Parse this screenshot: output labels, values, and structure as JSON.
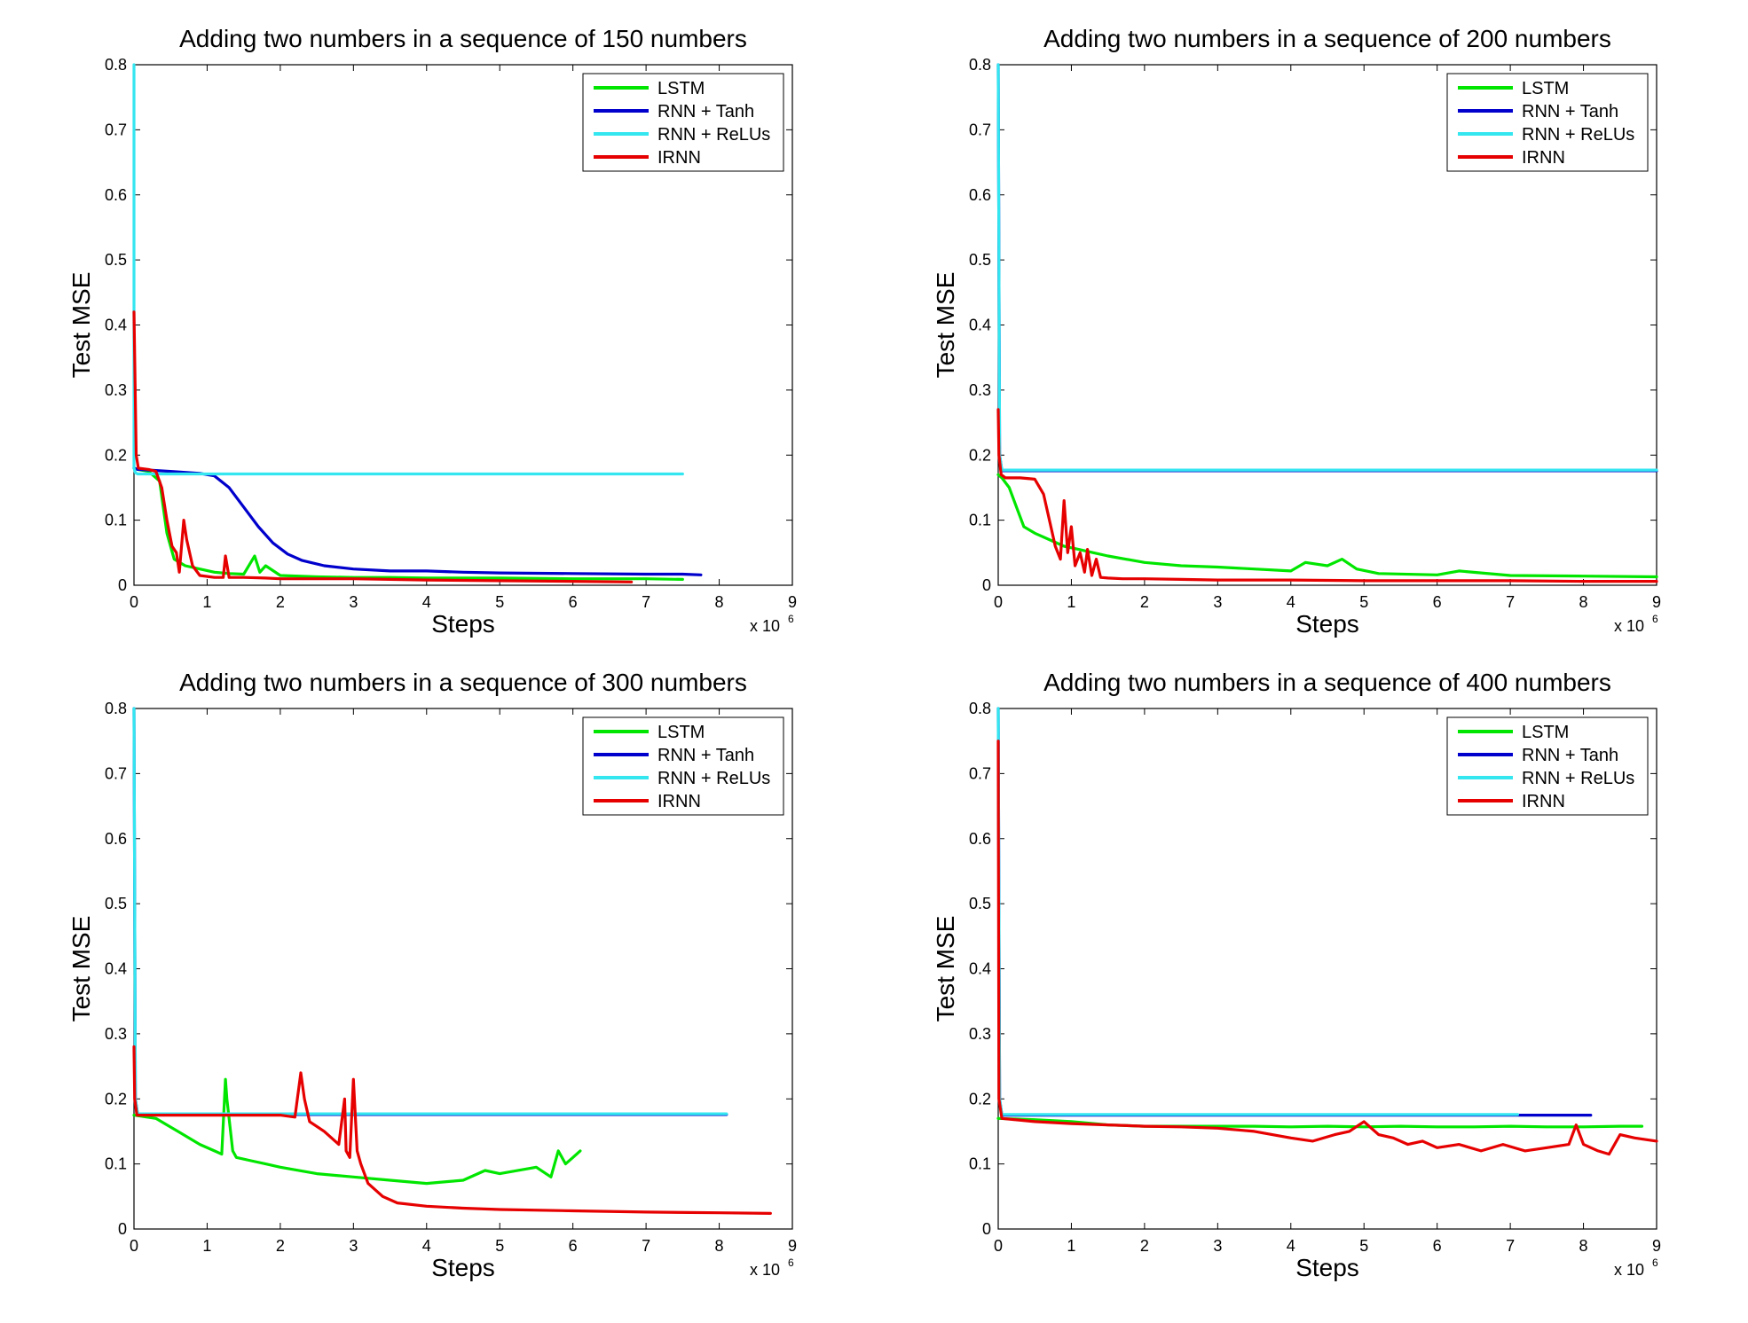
{
  "chart_data": [
    {
      "type": "line",
      "title": "Adding two numbers in a sequence of 150 numbers",
      "xlabel": "Steps",
      "ylabel": "Test MSE",
      "x_multiplier": "x 10",
      "x_multiplier_exp": "6",
      "xlim": [
        0,
        9
      ],
      "ylim": [
        0,
        0.8
      ],
      "x_ticks": [
        "0",
        "1",
        "2",
        "3",
        "4",
        "5",
        "6",
        "7",
        "8",
        "9"
      ],
      "y_ticks": [
        "0",
        "0.1",
        "0.2",
        "0.3",
        "0.4",
        "0.5",
        "0.6",
        "0.7",
        "0.8"
      ],
      "legend_position": "top-right",
      "series": [
        {
          "name": "LSTM",
          "color": "#00e600",
          "x": [
            0,
            0.05,
            0.2,
            0.35,
            0.45,
            0.55,
            0.7,
            0.9,
            1.1,
            1.3,
            1.5,
            1.65,
            1.72,
            1.8,
            2,
            2.5,
            3,
            3.5,
            4,
            5,
            6,
            7,
            7.5
          ],
          "y": [
            0.18,
            0.178,
            0.175,
            0.16,
            0.08,
            0.04,
            0.03,
            0.025,
            0.02,
            0.018,
            0.017,
            0.045,
            0.02,
            0.03,
            0.015,
            0.013,
            0.012,
            0.012,
            0.011,
            0.011,
            0.01,
            0.01,
            0.009
          ]
        },
        {
          "name": "RNN + Tanh",
          "color": "#0000cc",
          "x": [
            0,
            0.05,
            0.5,
            0.9,
            1.1,
            1.3,
            1.5,
            1.7,
            1.9,
            2.1,
            2.3,
            2.6,
            3,
            3.5,
            4,
            4.5,
            5,
            6,
            7,
            7.5,
            7.75
          ],
          "y": [
            0.18,
            0.178,
            0.175,
            0.172,
            0.168,
            0.15,
            0.12,
            0.09,
            0.065,
            0.048,
            0.038,
            0.03,
            0.025,
            0.022,
            0.022,
            0.02,
            0.019,
            0.018,
            0.017,
            0.017,
            0.016
          ]
        },
        {
          "name": "RNN + ReLUs",
          "color": "#33e6f0",
          "x": [
            0,
            0,
            0.02,
            0.05,
            1,
            2,
            3,
            4,
            5,
            6,
            7,
            7.5
          ],
          "y": [
            0.8,
            0.18,
            0.173,
            0.171,
            0.171,
            0.171,
            0.171,
            0.171,
            0.171,
            0.171,
            0.171,
            0.171
          ]
        },
        {
          "name": "IRNN",
          "color": "#e60000",
          "x": [
            0,
            0.01,
            0.03,
            0.06,
            0.2,
            0.3,
            0.38,
            0.45,
            0.52,
            0.58,
            0.62,
            0.68,
            0.72,
            0.8,
            0.9,
            1.1,
            1.22,
            1.25,
            1.3,
            1.5,
            1.8,
            2,
            2.5,
            3,
            4,
            5,
            6,
            6.8
          ],
          "y": [
            0.42,
            0.35,
            0.2,
            0.18,
            0.178,
            0.175,
            0.15,
            0.1,
            0.06,
            0.05,
            0.02,
            0.1,
            0.07,
            0.03,
            0.015,
            0.012,
            0.012,
            0.045,
            0.012,
            0.012,
            0.011,
            0.01,
            0.01,
            0.01,
            0.008,
            0.007,
            0.006,
            0.005
          ]
        }
      ]
    },
    {
      "type": "line",
      "title": "Adding two numbers in a sequence of 200 numbers",
      "xlabel": "Steps",
      "ylabel": "Test MSE",
      "x_multiplier": "x 10",
      "x_multiplier_exp": "6",
      "xlim": [
        0,
        9
      ],
      "ylim": [
        0,
        0.8
      ],
      "x_ticks": [
        "0",
        "1",
        "2",
        "3",
        "4",
        "5",
        "6",
        "7",
        "8",
        "9"
      ],
      "y_ticks": [
        "0",
        "0.1",
        "0.2",
        "0.3",
        "0.4",
        "0.5",
        "0.6",
        "0.7",
        "0.8"
      ],
      "legend_position": "top-right",
      "series": [
        {
          "name": "LSTM",
          "color": "#00e600",
          "x": [
            0,
            0.05,
            0.15,
            0.25,
            0.35,
            0.5,
            0.7,
            0.9,
            1.1,
            1.3,
            1.5,
            2,
            2.5,
            3,
            3.5,
            4,
            4.2,
            4.5,
            4.7,
            4.9,
            5.2,
            6,
            6.3,
            7,
            8,
            9
          ],
          "y": [
            0.17,
            0.165,
            0.15,
            0.12,
            0.09,
            0.08,
            0.07,
            0.06,
            0.055,
            0.05,
            0.045,
            0.035,
            0.03,
            0.028,
            0.025,
            0.022,
            0.035,
            0.03,
            0.04,
            0.025,
            0.018,
            0.016,
            0.022,
            0.015,
            0.014,
            0.013
          ]
        },
        {
          "name": "RNN + Tanh",
          "color": "#0000cc",
          "x": [
            0,
            0.02,
            0.05,
            9
          ],
          "y": [
            0.8,
            0.2,
            0.176,
            0.176
          ]
        },
        {
          "name": "RNN + ReLUs",
          "color": "#33e6f0",
          "x": [
            0,
            0.02,
            0.05,
            9
          ],
          "y": [
            0.8,
            0.2,
            0.177,
            0.177
          ]
        },
        {
          "name": "IRNN",
          "color": "#e60000",
          "x": [
            0,
            0.01,
            0.04,
            0.1,
            0.3,
            0.5,
            0.62,
            0.7,
            0.78,
            0.85,
            0.9,
            0.95,
            1.0,
            1.05,
            1.12,
            1.18,
            1.22,
            1.28,
            1.34,
            1.4,
            1.5,
            1.7,
            2,
            2.5,
            3,
            4,
            5,
            6,
            7,
            8,
            9
          ],
          "y": [
            0.27,
            0.2,
            0.17,
            0.165,
            0.165,
            0.163,
            0.14,
            0.1,
            0.06,
            0.04,
            0.13,
            0.05,
            0.09,
            0.03,
            0.05,
            0.02,
            0.055,
            0.015,
            0.04,
            0.012,
            0.011,
            0.01,
            0.01,
            0.009,
            0.008,
            0.008,
            0.007,
            0.007,
            0.007,
            0.006,
            0.006
          ]
        }
      ]
    },
    {
      "type": "line",
      "title": "Adding two numbers in a sequence of 300 numbers",
      "xlabel": "Steps",
      "ylabel": "Test MSE",
      "x_multiplier": "x 10",
      "x_multiplier_exp": "6",
      "xlim": [
        0,
        9
      ],
      "ylim": [
        0,
        0.8
      ],
      "x_ticks": [
        "0",
        "1",
        "2",
        "3",
        "4",
        "5",
        "6",
        "7",
        "8",
        "9"
      ],
      "y_ticks": [
        "0",
        "0.1",
        "0.2",
        "0.3",
        "0.4",
        "0.5",
        "0.6",
        "0.7",
        "0.8"
      ],
      "legend_position": "top-right",
      "series": [
        {
          "name": "LSTM",
          "color": "#00e600",
          "x": [
            0,
            0.3,
            0.6,
            0.9,
            1.1,
            1.2,
            1.25,
            1.27,
            1.35,
            1.4,
            1.6,
            1.8,
            2,
            2.5,
            3,
            3.5,
            4,
            4.5,
            4.8,
            5,
            5.5,
            5.7,
            5.8,
            5.9,
            6.0,
            6.1
          ],
          "y": [
            0.175,
            0.17,
            0.15,
            0.13,
            0.12,
            0.115,
            0.23,
            0.2,
            0.12,
            0.11,
            0.105,
            0.1,
            0.095,
            0.085,
            0.08,
            0.075,
            0.07,
            0.075,
            0.09,
            0.085,
            0.095,
            0.08,
            0.12,
            0.1,
            0.11,
            0.12
          ]
        },
        {
          "name": "RNN + Tanh",
          "color": "#0000cc",
          "x": [
            0,
            0.02,
            0.05,
            8.1
          ],
          "y": [
            0.8,
            0.2,
            0.176,
            0.176
          ]
        },
        {
          "name": "RNN + ReLUs",
          "color": "#33e6f0",
          "x": [
            0,
            0.02,
            0.05,
            8.1
          ],
          "y": [
            0.8,
            0.2,
            0.177,
            0.177
          ]
        },
        {
          "name": "IRNN",
          "color": "#e60000",
          "x": [
            0,
            0.01,
            0.04,
            0.5,
            1,
            1.5,
            2,
            2.2,
            2.28,
            2.33,
            2.4,
            2.6,
            2.8,
            2.88,
            2.9,
            2.95,
            3.0,
            3.05,
            3.1,
            3.2,
            3.4,
            3.6,
            4,
            4.5,
            5,
            6,
            7,
            8,
            8.7
          ],
          "y": [
            0.28,
            0.2,
            0.175,
            0.175,
            0.175,
            0.175,
            0.175,
            0.172,
            0.24,
            0.2,
            0.165,
            0.15,
            0.13,
            0.2,
            0.12,
            0.11,
            0.23,
            0.12,
            0.1,
            0.07,
            0.05,
            0.04,
            0.035,
            0.032,
            0.03,
            0.028,
            0.026,
            0.025,
            0.024
          ]
        }
      ]
    },
    {
      "type": "line",
      "title": "Adding two numbers in a sequence of 400 numbers",
      "xlabel": "Steps",
      "ylabel": "Test MSE",
      "x_multiplier": "x 10",
      "x_multiplier_exp": "6",
      "xlim": [
        0,
        9
      ],
      "ylim": [
        0,
        0.8
      ],
      "x_ticks": [
        "0",
        "1",
        "2",
        "3",
        "4",
        "5",
        "6",
        "7",
        "8",
        "9"
      ],
      "y_ticks": [
        "0",
        "0.1",
        "0.2",
        "0.3",
        "0.4",
        "0.5",
        "0.6",
        "0.7",
        "0.8"
      ],
      "legend_position": "top-right",
      "series": [
        {
          "name": "LSTM",
          "color": "#00e600",
          "x": [
            0,
            0.5,
            1,
            1.5,
            2,
            2.5,
            3,
            3.5,
            4,
            4.5,
            5,
            5.5,
            6,
            6.5,
            7,
            7.5,
            8,
            8.5,
            8.8
          ],
          "y": [
            0.17,
            0.168,
            0.165,
            0.16,
            0.158,
            0.158,
            0.158,
            0.158,
            0.157,
            0.158,
            0.157,
            0.158,
            0.157,
            0.157,
            0.158,
            0.157,
            0.157,
            0.158,
            0.158
          ]
        },
        {
          "name": "RNN + Tanh",
          "color": "#0000cc",
          "x": [
            0,
            0.02,
            0.05,
            8.1
          ],
          "y": [
            0.8,
            0.2,
            0.175,
            0.175
          ]
        },
        {
          "name": "RNN + ReLUs",
          "color": "#33e6f0",
          "x": [
            0,
            0.02,
            0.05,
            7.1
          ],
          "y": [
            0.8,
            0.2,
            0.176,
            0.176
          ]
        },
        {
          "name": "IRNN",
          "color": "#e60000",
          "x": [
            0,
            0.01,
            0.05,
            0.5,
            1,
            1.5,
            2,
            2.5,
            3,
            3.5,
            4,
            4.3,
            4.6,
            4.8,
            5.0,
            5.2,
            5.4,
            5.6,
            5.8,
            6,
            6.3,
            6.6,
            6.9,
            7.2,
            7.5,
            7.8,
            7.9,
            8.0,
            8.2,
            8.35,
            8.5,
            8.7,
            9
          ],
          "y": [
            0.75,
            0.2,
            0.17,
            0.165,
            0.162,
            0.16,
            0.158,
            0.157,
            0.155,
            0.15,
            0.14,
            0.135,
            0.145,
            0.15,
            0.165,
            0.145,
            0.14,
            0.13,
            0.135,
            0.125,
            0.13,
            0.12,
            0.13,
            0.12,
            0.125,
            0.13,
            0.16,
            0.13,
            0.12,
            0.115,
            0.145,
            0.14,
            0.135
          ]
        }
      ]
    }
  ]
}
